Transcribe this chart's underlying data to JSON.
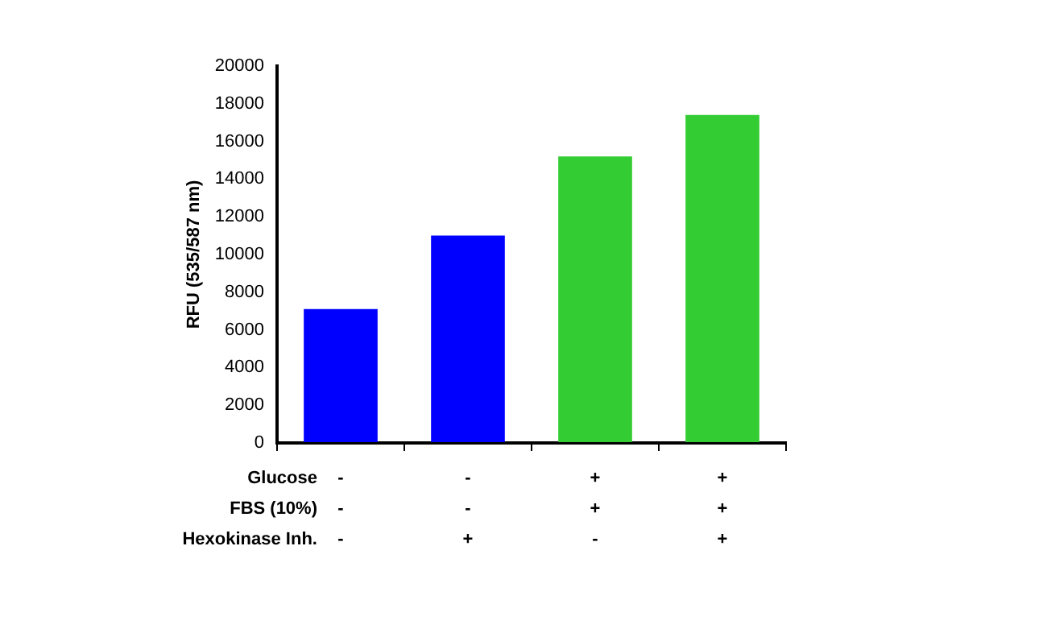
{
  "chart_data": {
    "type": "bar",
    "ylabel": "RFU (535/587 nm)",
    "categories": [
      "-\n-\n-",
      "-\n-\n+",
      "+\n+\n-",
      "+\n+\n+"
    ],
    "values": [
      7100,
      11000,
      15200,
      17400
    ],
    "colors": [
      "#0000ff",
      "#0000ff",
      "#33cc33",
      "#33cc33"
    ],
    "ylim": [
      0,
      20000
    ],
    "yticks": [
      0,
      2000,
      4000,
      6000,
      8000,
      10000,
      12000,
      14000,
      16000,
      18000,
      20000
    ],
    "annotations": [
      "Glucose",
      "FBS (10%)",
      "Hexokinase Inh."
    ],
    "grid": false,
    "legend": false
  }
}
